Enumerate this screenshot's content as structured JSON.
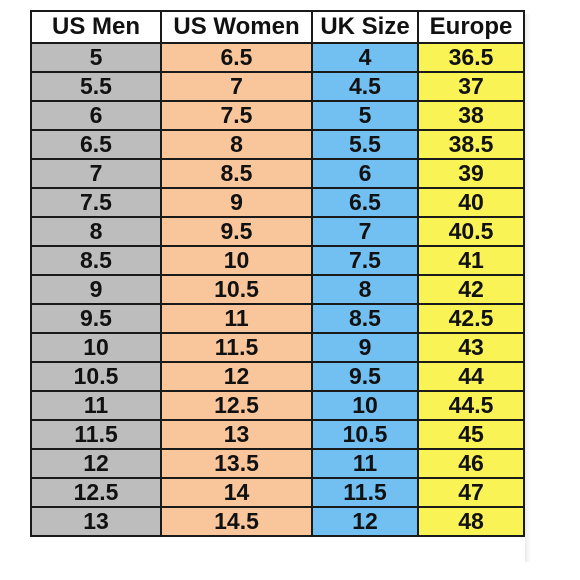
{
  "chart_data": {
    "type": "table",
    "columns": [
      "US Men",
      "US Women",
      "UK Size",
      "Europe"
    ],
    "colors": {
      "us_men": "#bdbdbd",
      "us_women": "#f9c69c",
      "uk": "#72bff2",
      "europe": "#f9f356",
      "header": "#ffffff",
      "border": "#1a1a1a"
    },
    "rows": [
      [
        "5",
        "6.5",
        "4",
        "36.5"
      ],
      [
        "5.5",
        "7",
        "4.5",
        "37"
      ],
      [
        "6",
        "7.5",
        "5",
        "38"
      ],
      [
        "6.5",
        "8",
        "5.5",
        "38.5"
      ],
      [
        "7",
        "8.5",
        "6",
        "39"
      ],
      [
        "7.5",
        "9",
        "6.5",
        "40"
      ],
      [
        "8",
        "9.5",
        "7",
        "40.5"
      ],
      [
        "8.5",
        "10",
        "7.5",
        "41"
      ],
      [
        "9",
        "10.5",
        "8",
        "42"
      ],
      [
        "9.5",
        "11",
        "8.5",
        "42.5"
      ],
      [
        "10",
        "11.5",
        "9",
        "43"
      ],
      [
        "10.5",
        "12",
        "9.5",
        "44"
      ],
      [
        "11",
        "12.5",
        "10",
        "44.5"
      ],
      [
        "11.5",
        "13",
        "10.5",
        "45"
      ],
      [
        "12",
        "13.5",
        "11",
        "46"
      ],
      [
        "12.5",
        "14",
        "11.5",
        "47"
      ],
      [
        "13",
        "14.5",
        "12",
        "48"
      ]
    ]
  }
}
